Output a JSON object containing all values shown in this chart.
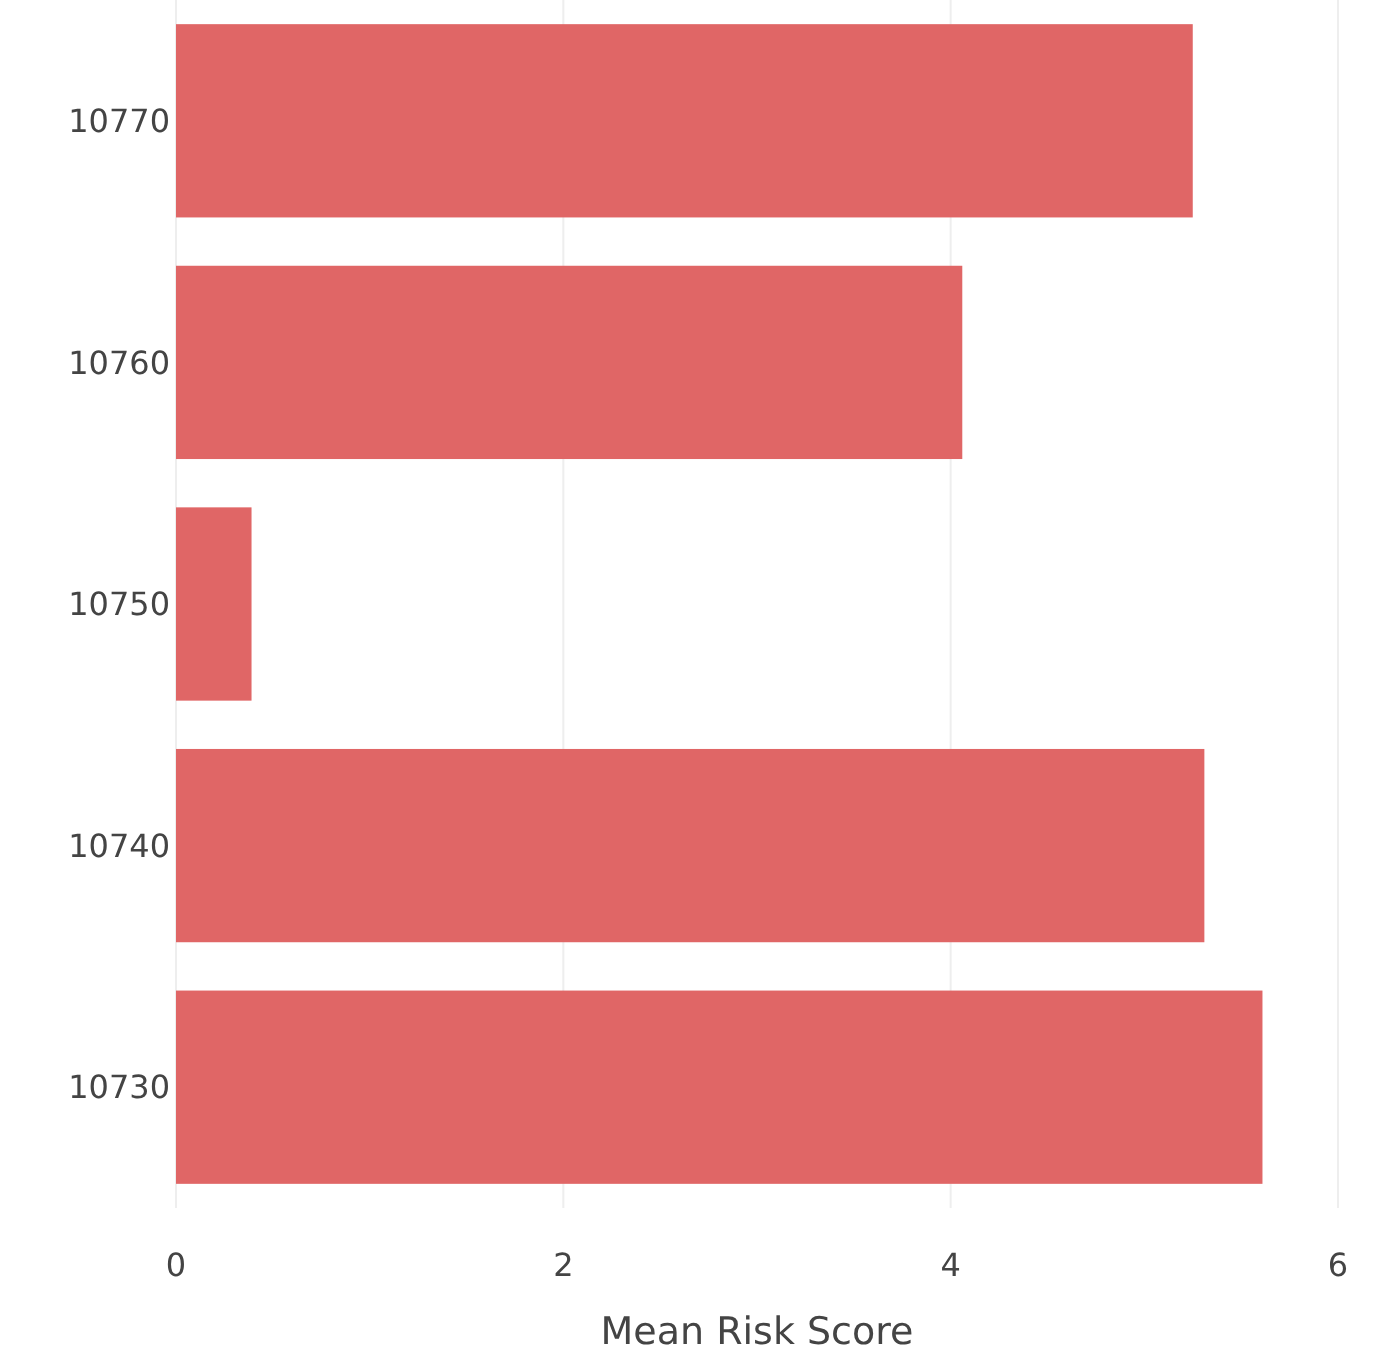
{
  "chart_data": {
    "type": "bar",
    "orientation": "horizontal",
    "xlabel": "Mean Risk Score",
    "categories": [
      "10770",
      "10760",
      "10750",
      "10740",
      "10730"
    ],
    "values": [
      5.25,
      4.06,
      0.39,
      5.31,
      5.61
    ],
    "color": "#e06666",
    "xlim": [
      0,
      6
    ],
    "xticks": [
      0,
      2,
      4,
      6
    ],
    "grid": "x"
  }
}
